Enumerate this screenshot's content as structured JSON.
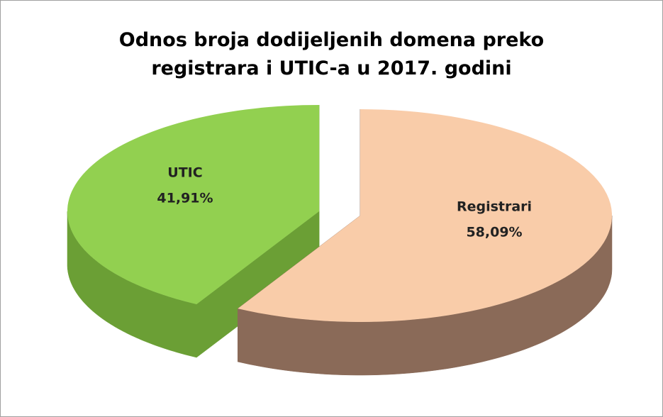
{
  "chart_data": {
    "type": "pie",
    "title": "Odnos broja dodijeljenih  domena preko registrara i UTIC-a u 2017. godini",
    "categories": [
      "Registrari",
      "UTIC"
    ],
    "values": [
      58.09,
      41.91
    ],
    "value_labels": [
      "58,09%",
      "41,91%"
    ],
    "colors": [
      "#f9cca9",
      "#92d050"
    ],
    "side_colors": [
      "#8a6a58",
      "#6b9f35"
    ]
  }
}
